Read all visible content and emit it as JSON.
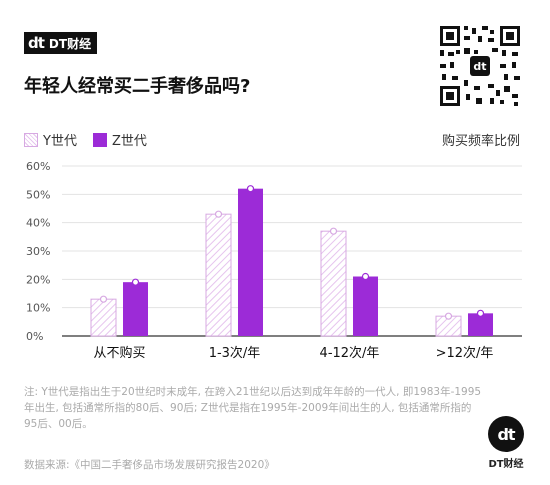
{
  "brand": {
    "logo": "dt",
    "name": "DT财经"
  },
  "title": "年轻人经常买二手奢侈品吗?",
  "unit_label": "购买频率比例",
  "note": "注: Y世代是指出生于20世纪时末成年, 在跨入21世纪以后达到成年年龄的一代人, 即1983年-1995年出生, 包括通常所指的80后、90后; Z世代是指在1995年-2009年间出生的人, 包括通常所指的95后、00后。",
  "source": "数据来源:《中国二手奢侈品市场发展研究报告2020》",
  "corner_logo": {
    "logo": "dt",
    "name": "DT财经"
  },
  "colors": {
    "z": "#9c2bd7",
    "y_stroke": "#d7a9e2",
    "y_hatch": "#e6c4ee",
    "marker_fill": "#ffffff"
  },
  "chart_data": {
    "type": "bar",
    "categories": [
      "从不购买",
      "1-3次/年",
      "4-12次/年",
      ">12次/年"
    ],
    "series": [
      {
        "name": "Y世代",
        "values": [
          13,
          43,
          37,
          7
        ]
      },
      {
        "name": "Z世代",
        "values": [
          19,
          52,
          21,
          8
        ]
      }
    ],
    "ylim": [
      0,
      60
    ],
    "yticks": [
      "0%",
      "10%",
      "20%",
      "30%",
      "40%",
      "50%",
      "60%"
    ],
    "ylabel": "购买频率比例",
    "legend": "top-left",
    "grid": true
  }
}
